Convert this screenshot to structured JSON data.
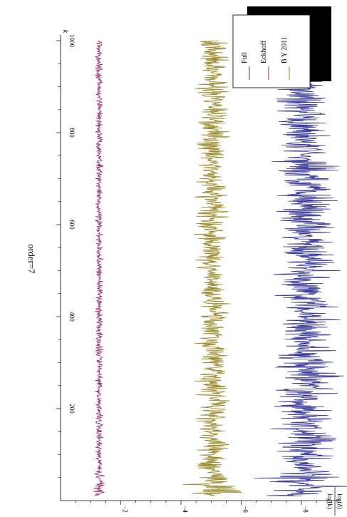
{
  "chart_data": {
    "type": "line",
    "title": "order=7",
    "xlabel": "k",
    "ylabel_num": "log(δ)",
    "ylabel_den": "log(k)",
    "xlim": [
      0,
      1000
    ],
    "ylim": [
      -9.3,
      0
    ],
    "x_ticks": [
      200,
      400,
      600,
      800,
      1000
    ],
    "y_ticks": [
      -2,
      -4,
      -6,
      -8
    ],
    "y_tick_labels": [
      "−2",
      "−4",
      "−6",
      "−8"
    ],
    "orientation": "rotated-90-clockwise",
    "legend_position": "top-right",
    "series": [
      {
        "name": "Full",
        "color": "#3a3a9a",
        "mean": -8.15,
        "spread": 0.55,
        "k_start": 10,
        "k_end": 1000
      },
      {
        "name": "Eckhoff",
        "color": "#9a2f6a",
        "mean": -1.28,
        "spread": 0.07,
        "k_start": 10,
        "k_end": 1000
      },
      {
        "name": "B Y 2011",
        "color": "#9a8a2a",
        "mean": -5.05,
        "spread": 0.3,
        "k_start": 10,
        "k_end": 1000
      }
    ]
  }
}
